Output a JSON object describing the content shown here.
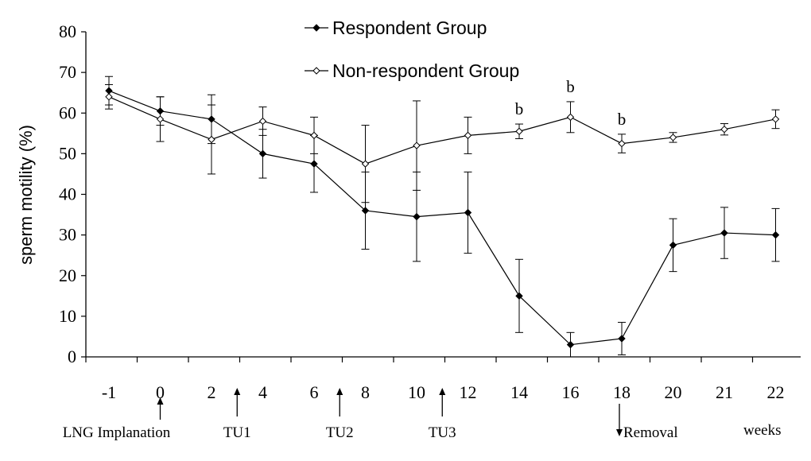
{
  "chart_data": {
    "type": "line",
    "title": "",
    "xlabel": "",
    "ylabel": "sperm motility (%)",
    "x_unit_label": "weeks",
    "categories": [
      "-1",
      "0",
      "2",
      "4",
      "6",
      "8",
      "10",
      "12",
      "14",
      "16",
      "18",
      "20",
      "21",
      "22"
    ],
    "ylim": [
      0,
      80
    ],
    "yticks": [
      0,
      10,
      20,
      30,
      40,
      50,
      60,
      70,
      80
    ],
    "grid": false,
    "legend_position": "top-center",
    "series": [
      {
        "name": "Respondent Group",
        "marker": "filled-diamond",
        "values": [
          65.5,
          60.5,
          58.5,
          50,
          47.5,
          36,
          34.5,
          35.5,
          15,
          3,
          4.5,
          27.5,
          30.5,
          30
        ],
        "errors": [
          3.5,
          3.5,
          6,
          6,
          7,
          9.5,
          11,
          10,
          9,
          3,
          4,
          6.5,
          6.3,
          6.5
        ]
      },
      {
        "name": "Non-respondent Group",
        "marker": "open-diamond",
        "values": [
          64,
          58.5,
          53.5,
          58,
          54.5,
          47.5,
          52,
          54.5,
          55.5,
          59,
          52.5,
          54,
          56,
          58.5
        ],
        "errors": [
          3,
          5.5,
          8.5,
          3.5,
          4.5,
          9.5,
          11,
          4.5,
          1.8,
          3.8,
          2.3,
          1.2,
          1.4,
          2.3
        ]
      }
    ],
    "significance_markers": [
      {
        "x": "14",
        "label": "b"
      },
      {
        "x": "16",
        "label": "b"
      },
      {
        "x": "18",
        "label": "b"
      }
    ],
    "annotations": [
      {
        "label": "LNG Implanation",
        "arrow": "up",
        "at_x": "0"
      },
      {
        "label": "TU1",
        "arrow": "up",
        "between": [
          "2",
          "4"
        ]
      },
      {
        "label": "TU2",
        "arrow": "up",
        "between": [
          "6",
          "8"
        ]
      },
      {
        "label": "TU3",
        "arrow": "up",
        "between": [
          "10",
          "12"
        ]
      },
      {
        "label": "Removal",
        "arrow": "down",
        "at_x": "18"
      }
    ]
  }
}
